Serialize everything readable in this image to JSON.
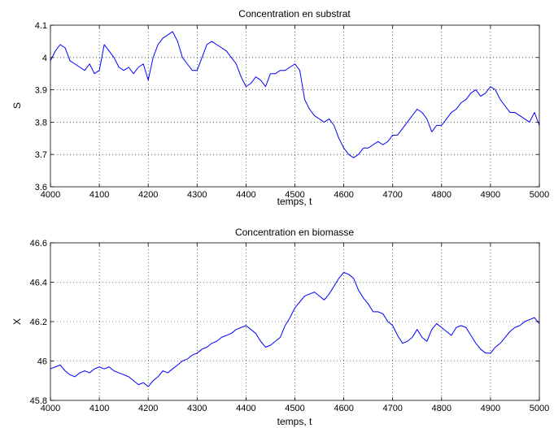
{
  "chart_data": [
    {
      "type": "line",
      "title": "Concentration en substrat",
      "xlabel": "temps, t",
      "ylabel": "S",
      "xlim": [
        4000,
        5000
      ],
      "ylim": [
        3.6,
        4.1
      ],
      "xticks": [
        4000,
        4100,
        4200,
        4300,
        4400,
        4500,
        4600,
        4700,
        4800,
        4900,
        5000
      ],
      "yticks": [
        3.6,
        3.7,
        3.8,
        3.9,
        4,
        4.1
      ],
      "ytick_labels": [
        "3.6",
        "3.7",
        "3.8",
        "3.9",
        "4",
        "4.1"
      ],
      "grid": true,
      "line_color": "#0000ff",
      "series": [
        {
          "x": [
            4000,
            4010,
            4020,
            4030,
            4040,
            4050,
            4060,
            4070,
            4080,
            4090,
            4100,
            4110,
            4120,
            4130,
            4140,
            4150,
            4160,
            4170,
            4180,
            4190,
            4200,
            4210,
            4220,
            4230,
            4240,
            4250,
            4260,
            4270,
            4280,
            4290,
            4300,
            4310,
            4320,
            4330,
            4340,
            4350,
            4360,
            4370,
            4380,
            4390,
            4400,
            4410,
            4420,
            4430,
            4440,
            4450,
            4460,
            4470,
            4480,
            4490,
            4500,
            4510,
            4520,
            4530,
            4540,
            4550,
            4560,
            4570,
            4580,
            4590,
            4600,
            4610,
            4620,
            4630,
            4640,
            4650,
            4660,
            4670,
            4680,
            4690,
            4700,
            4710,
            4720,
            4730,
            4740,
            4750,
            4760,
            4770,
            4780,
            4790,
            4800,
            4810,
            4820,
            4830,
            4840,
            4850,
            4860,
            4870,
            4880,
            4890,
            4900,
            4910,
            4920,
            4930,
            4940,
            4950,
            4960,
            4970,
            4980,
            4990,
            5000
          ],
          "values": [
            3.99,
            4.02,
            4.04,
            4.03,
            3.99,
            3.98,
            3.97,
            3.96,
            3.98,
            3.95,
            3.96,
            4.04,
            4.02,
            4.0,
            3.97,
            3.96,
            3.97,
            3.95,
            3.97,
            3.98,
            3.93,
            4.0,
            4.04,
            4.06,
            4.07,
            4.08,
            4.05,
            4.0,
            3.98,
            3.96,
            3.96,
            4.0,
            4.04,
            4.05,
            4.04,
            4.03,
            4.02,
            4.0,
            3.98,
            3.94,
            3.91,
            3.92,
            3.94,
            3.93,
            3.91,
            3.95,
            3.95,
            3.96,
            3.96,
            3.97,
            3.98,
            3.96,
            3.87,
            3.84,
            3.82,
            3.81,
            3.8,
            3.81,
            3.79,
            3.75,
            3.72,
            3.7,
            3.69,
            3.7,
            3.72,
            3.72,
            3.73,
            3.74,
            3.73,
            3.74,
            3.76,
            3.76,
            3.78,
            3.8,
            3.82,
            3.84,
            3.83,
            3.81,
            3.77,
            3.79,
            3.79,
            3.81,
            3.83,
            3.84,
            3.86,
            3.87,
            3.89,
            3.9,
            3.88,
            3.89,
            3.91,
            3.9,
            3.87,
            3.85,
            3.83,
            3.83,
            3.82,
            3.81,
            3.8,
            3.83,
            3.79
          ]
        }
      ]
    },
    {
      "type": "line",
      "title": "Concentration en biomasse",
      "xlabel": "temps, t",
      "ylabel": "X",
      "xlim": [
        4000,
        5000
      ],
      "ylim": [
        45.8,
        46.6
      ],
      "xticks": [
        4000,
        4100,
        4200,
        4300,
        4400,
        4500,
        4600,
        4700,
        4800,
        4900,
        5000
      ],
      "yticks": [
        45.8,
        46,
        46.2,
        46.4,
        46.6
      ],
      "ytick_labels": [
        "45.8",
        "46",
        "46.2",
        "46.4",
        "46.6"
      ],
      "grid": true,
      "line_color": "#0000ff",
      "series": [
        {
          "x": [
            4000,
            4010,
            4020,
            4030,
            4040,
            4050,
            4060,
            4070,
            4080,
            4090,
            4100,
            4110,
            4120,
            4130,
            4140,
            4150,
            4160,
            4170,
            4180,
            4190,
            4200,
            4210,
            4220,
            4230,
            4240,
            4250,
            4260,
            4270,
            4280,
            4290,
            4300,
            4310,
            4320,
            4330,
            4340,
            4350,
            4360,
            4370,
            4380,
            4390,
            4400,
            4410,
            4420,
            4430,
            4440,
            4450,
            4460,
            4470,
            4480,
            4490,
            4500,
            4510,
            4520,
            4530,
            4540,
            4550,
            4560,
            4570,
            4580,
            4590,
            4600,
            4610,
            4620,
            4630,
            4640,
            4650,
            4660,
            4670,
            4680,
            4690,
            4700,
            4710,
            4720,
            4730,
            4740,
            4750,
            4760,
            4770,
            4780,
            4790,
            4800,
            4810,
            4820,
            4830,
            4840,
            4850,
            4860,
            4870,
            4880,
            4890,
            4900,
            4910,
            4920,
            4930,
            4940,
            4950,
            4960,
            4970,
            4980,
            4990,
            5000
          ],
          "values": [
            45.96,
            45.97,
            45.98,
            45.95,
            45.93,
            45.92,
            45.94,
            45.95,
            45.94,
            45.96,
            45.97,
            45.96,
            45.97,
            45.95,
            45.94,
            45.93,
            45.92,
            45.9,
            45.88,
            45.89,
            45.87,
            45.9,
            45.92,
            45.95,
            45.94,
            45.96,
            45.98,
            46.0,
            46.01,
            46.03,
            46.04,
            46.06,
            46.07,
            46.09,
            46.1,
            46.12,
            46.13,
            46.14,
            46.16,
            46.17,
            46.18,
            46.16,
            46.14,
            46.1,
            46.07,
            46.08,
            46.1,
            46.12,
            46.18,
            46.22,
            46.27,
            46.3,
            46.33,
            46.34,
            46.35,
            46.33,
            46.31,
            46.34,
            46.38,
            46.42,
            46.45,
            46.44,
            46.42,
            46.36,
            46.32,
            46.29,
            46.25,
            46.25,
            46.24,
            46.2,
            46.18,
            46.13,
            46.09,
            46.1,
            46.12,
            46.16,
            46.12,
            46.1,
            46.16,
            46.19,
            46.17,
            46.15,
            46.13,
            46.17,
            46.18,
            46.17,
            46.13,
            46.09,
            46.06,
            46.04,
            46.04,
            46.07,
            46.09,
            46.12,
            46.15,
            46.17,
            46.18,
            46.2,
            46.21,
            46.22,
            46.19
          ]
        }
      ]
    }
  ]
}
